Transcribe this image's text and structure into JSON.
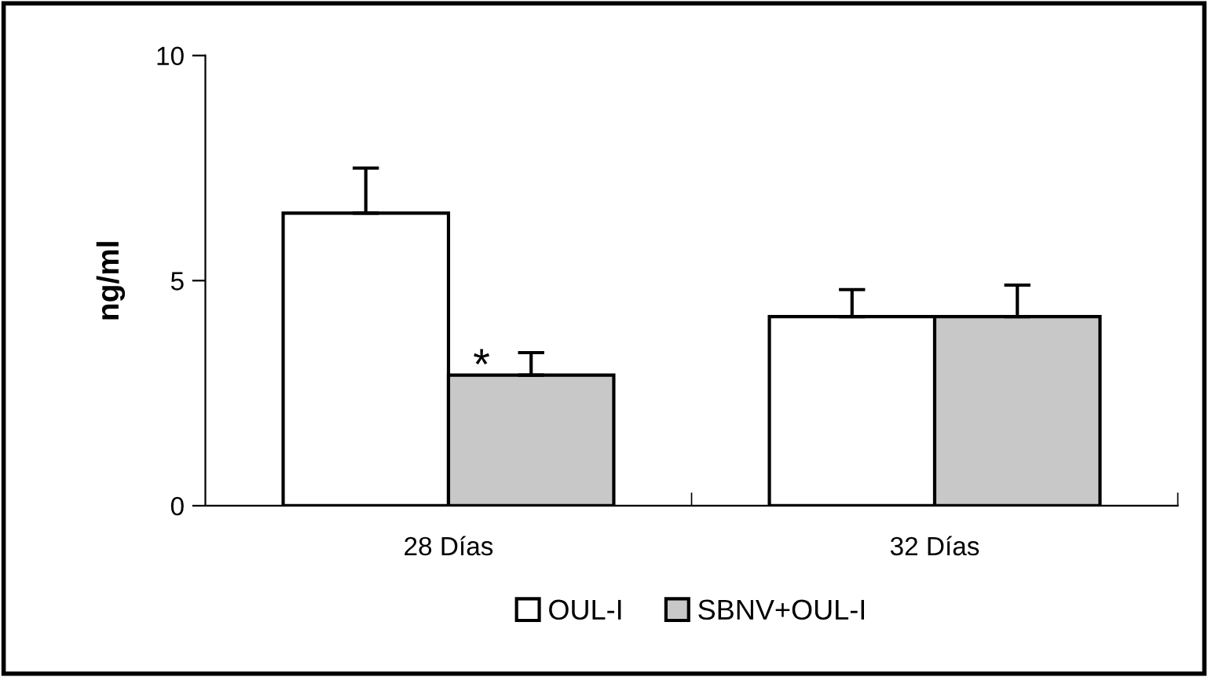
{
  "chart_data": {
    "type": "bar",
    "ylabel": "ng/ml",
    "categories": [
      "28 Días",
      "32 Días"
    ],
    "series": [
      {
        "name": "OUL-I",
        "color": "#ffffff",
        "values": [
          6.5,
          4.2
        ],
        "errors": [
          1.0,
          0.6
        ]
      },
      {
        "name": "SBNV+OUL-I",
        "color": "#c8c8c8",
        "values": [
          2.9,
          4.2
        ],
        "errors": [
          0.5,
          0.7
        ]
      }
    ],
    "ylim": [
      0,
      10
    ],
    "yticks": [
      0,
      5,
      10
    ],
    "grid": false,
    "legend": "bottom",
    "annotations": [
      {
        "text": "*",
        "x": "28 Días",
        "y": 2.9
      }
    ]
  }
}
